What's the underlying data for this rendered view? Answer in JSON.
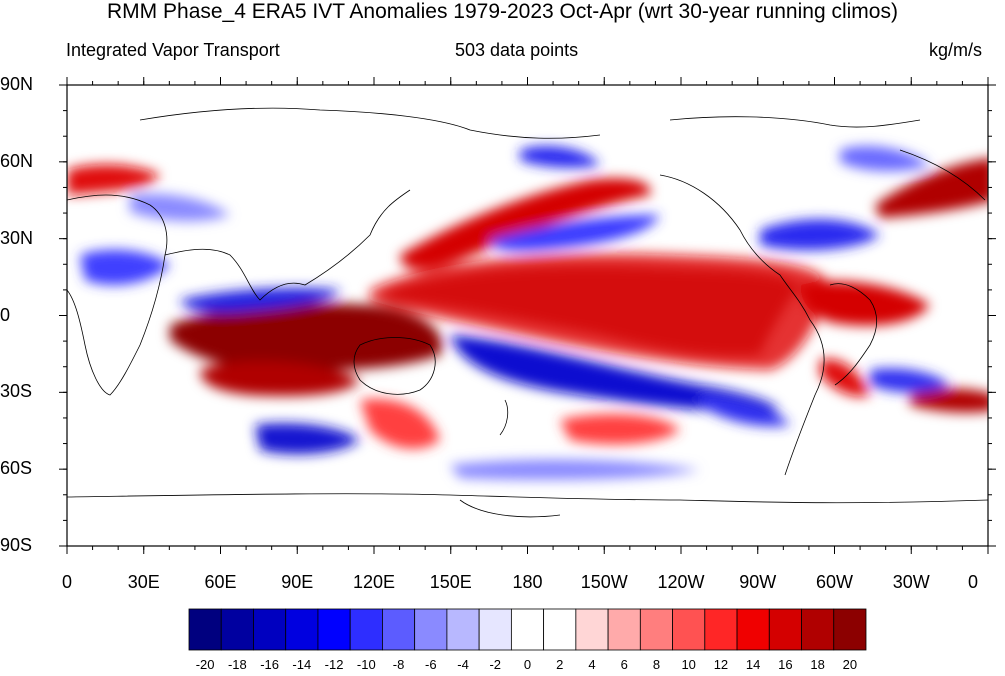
{
  "title": "RMM Phase_4 ERA5 IVT Anomalies 1979-2023 Oct-Apr (wrt 30-year running climos)",
  "subtitle_left": "Integrated Vapor Transport",
  "subtitle_center": "503 data points",
  "subtitle_right": "kg/m/s",
  "lat_labels": [
    "90N",
    "60N",
    "30N",
    "0",
    "30S",
    "60S",
    "90S"
  ],
  "lon_labels": [
    "0",
    "30E",
    "60E",
    "90E",
    "120E",
    "150E",
    "180",
    "150W",
    "120W",
    "90W",
    "60W",
    "30W",
    "0"
  ],
  "colorbar": {
    "labels": [
      "-20",
      "-18",
      "-16",
      "-14",
      "-12",
      "-10",
      "-8",
      "-6",
      "-4",
      "-2",
      "0",
      "2",
      "4",
      "6",
      "8",
      "10",
      "12",
      "14",
      "16",
      "18",
      "20"
    ],
    "colors": [
      "#00007f",
      "#0000a0",
      "#0000c0",
      "#0000e0",
      "#0000ff",
      "#2e2eff",
      "#5c5cff",
      "#8a8aff",
      "#b8b8ff",
      "#e6e6ff",
      "#ffffff",
      "#ffffff",
      "#ffd6d6",
      "#ffaaaa",
      "#ff7e7e",
      "#ff5252",
      "#ff2626",
      "#f00000",
      "#d40000",
      "#b00000",
      "#8c0000"
    ]
  },
  "map": {
    "projection": "cylindrical-equidistant",
    "lon_range": [
      0,
      360
    ],
    "lat_range": [
      -90,
      90
    ],
    "field": "IVT anomaly (kg/m/s)",
    "coastlines": true
  }
}
